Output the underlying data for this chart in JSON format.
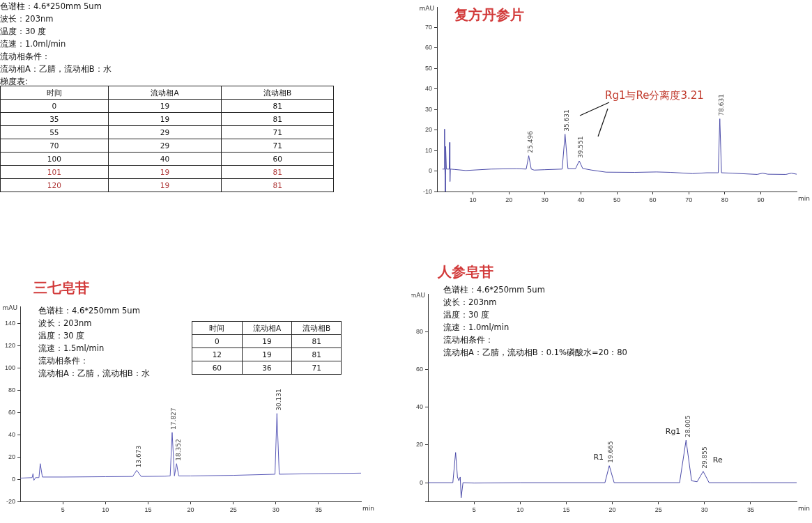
{
  "chart_data": [
    {
      "type": "other",
      "annotations": [
        "色谱柱：4.6*250mm 5um",
        "波长：203nm",
        "温度：30 度",
        "流速：1.0ml/min",
        "流动相条件：",
        "流动相A：乙腈，流动相B：水",
        "梯度表:"
      ],
      "categories": [
        "时间",
        "流动相A",
        "流动相B"
      ],
      "cell_labels": [
        [
          "0",
          "19",
          "81"
        ],
        [
          "35",
          "19",
          "81"
        ],
        [
          "55",
          "29",
          "71"
        ],
        [
          "70",
          "29",
          "71"
        ],
        [
          "100",
          "40",
          "60"
        ],
        [
          "101",
          "19",
          "81"
        ],
        [
          "120",
          "19",
          "81"
        ]
      ],
      "colors": [
        "#111111",
        "#111111",
        "#111111",
        "#111111",
        "#111111",
        "#b03a3a",
        "#b03a3a"
      ]
    },
    {
      "type": "line",
      "title": "复方丹参片",
      "xlabel": "min",
      "ylabel": "mAU",
      "x": [
        1.5,
        2.0,
        2.1,
        2.2,
        2.3,
        2.4,
        2.6,
        3.4,
        3.5,
        3.6,
        3.7,
        5,
        8,
        15,
        22,
        24.8,
        25.5,
        26.2,
        27,
        30,
        34.8,
        35.6,
        36.4,
        38.5,
        39.55,
        40.5,
        43,
        47,
        55,
        61,
        65,
        71,
        75,
        78.2,
        78.63,
        79.1,
        82,
        89,
        90.5,
        92,
        97,
        98.5,
        100
      ],
      "series": [
        {
          "color": "#4a4aa8",
          "values": [
            1,
            1,
            20.5,
            1,
            -10,
            12,
            1,
            1,
            14,
            -5,
            1,
            0.8,
            0.3,
            1,
            1.2,
            1,
            7.5,
            1,
            0.5,
            0.7,
            1,
            18,
            1.2,
            1.2,
            5,
            1.3,
            0.5,
            -0.5,
            -0.6,
            -0.4,
            -0.6,
            -1.2,
            -0.8,
            -0.8,
            25.5,
            -0.8,
            -1,
            -1.6,
            -1,
            -1.5,
            -1.6,
            -1,
            -1.5
          ]
        }
      ],
      "xlim": [
        0,
        100
      ],
      "ylim": [
        -10,
        80
      ],
      "xticks": [
        10,
        20,
        30,
        40,
        50,
        60,
        70,
        80,
        90
      ],
      "yticks": [
        -10,
        0,
        10,
        20,
        30,
        40,
        50,
        60,
        70
      ],
      "annotations": [
        {
          "text": "25.496",
          "x": 25.496,
          "y": 7.5
        },
        {
          "text": "35.631",
          "x": 35.631,
          "y": 18
        },
        {
          "text": "39.551",
          "x": 39.551,
          "y": 5
        },
        {
          "text": "78.631",
          "x": 78.631,
          "y": 25.5
        },
        "Rg1与Re分离度3.21"
      ]
    },
    {
      "type": "line",
      "title": "三七皂苷",
      "xlabel": "min",
      "ylabel": "mAU",
      "x": [
        0,
        1.4,
        1.5,
        1.6,
        1.8,
        2.2,
        2.35,
        2.6,
        5,
        10,
        13.2,
        13.67,
        14.2,
        17,
        17.6,
        17.83,
        18.1,
        18.35,
        18.6,
        20,
        25,
        29.9,
        30.13,
        30.4,
        35,
        40
      ],
      "series": [
        {
          "color": "#5a5ab8",
          "values": [
            1,
            1.5,
            5,
            -1,
            1.5,
            1.5,
            14,
            2,
            2,
            2.3,
            2.5,
            8,
            2.5,
            2.7,
            3,
            42,
            3,
            14,
            3,
            3,
            3.5,
            4.5,
            59,
            4.5,
            5,
            5.5
          ]
        }
      ],
      "xlim": [
        0,
        40
      ],
      "ylim": [
        -20,
        155
      ],
      "xticks": [
        5,
        10,
        15,
        20,
        25,
        30,
        35
      ],
      "yticks": [
        -20,
        0,
        20,
        40,
        60,
        80,
        100,
        120,
        140
      ],
      "annotations": [
        {
          "text": "13.673",
          "x": 13.673,
          "y": 8
        },
        {
          "text": "17.827",
          "x": 17.827,
          "y": 42
        },
        {
          "text": "18.352",
          "x": 18.352,
          "y": 14
        },
        {
          "text": "30.131",
          "x": 30.131,
          "y": 59
        }
      ]
    },
    {
      "type": "other",
      "annotations": [
        "色谱柱：4.6*250mm 5um",
        "波长：203nm",
        "温度：30 度",
        "流速：1.5ml/min",
        "流动相条件：",
        "流动相A：乙腈，流动相B：水"
      ],
      "categories": [
        "时间",
        "流动相A",
        "流动相B"
      ],
      "cell_labels": [
        [
          "0",
          "19",
          "81"
        ],
        [
          "12",
          "19",
          "81"
        ],
        [
          "60",
          "36",
          "71"
        ]
      ],
      "colors": [
        "#111111",
        "#111111",
        "#111111"
      ]
    },
    {
      "type": "line",
      "title": "人参皂苷",
      "xlabel": "min",
      "ylabel": "mAU",
      "x": [
        0,
        2.7,
        3.0,
        3.2,
        3.35,
        3.5,
        3.6,
        3.8,
        5,
        10,
        19.2,
        19.67,
        20.2,
        27.3,
        28.0,
        28.6,
        29.2,
        29.86,
        30.5,
        35,
        40
      ],
      "series": [
        {
          "color": "#4a4aa8",
          "values": [
            0,
            0,
            16,
            3,
            1,
            3,
            -8,
            0,
            -0.2,
            0,
            0,
            9,
            0,
            0,
            22.5,
            1,
            0.5,
            6,
            0,
            0,
            0
          ]
        }
      ],
      "xlim": [
        0,
        40
      ],
      "ylim": [
        -10,
        100
      ],
      "xticks": [
        5,
        10,
        15,
        20,
        25,
        30,
        35
      ],
      "yticks": [
        {
          "value": -10,
          "label": null
        },
        0,
        20,
        40,
        60,
        80
      ],
      "annotations": [
        {
          "text": "19.665",
          "x": 19.665,
          "y": 9
        },
        {
          "text": "28.005",
          "x": 28.005,
          "y": 22.5
        },
        {
          "text": "29.855",
          "x": 29.855,
          "y": 6
        },
        {
          "text": "R1",
          "x": 19.665,
          "y": 9
        },
        {
          "text": "Rg1",
          "x": 28.005,
          "y": 22.5
        },
        {
          "text": "Re",
          "x": 29.855,
          "y": 6
        }
      ]
    },
    {
      "type": "other",
      "annotations": [
        "色谱柱：4.6*250mm 5um",
        "波长：203nm",
        "温度：30 度",
        "流速：1.0ml/min",
        "流动相条件：",
        "流动相A：乙腈，流动相B：0.1%磷酸水=20：80"
      ]
    }
  ]
}
